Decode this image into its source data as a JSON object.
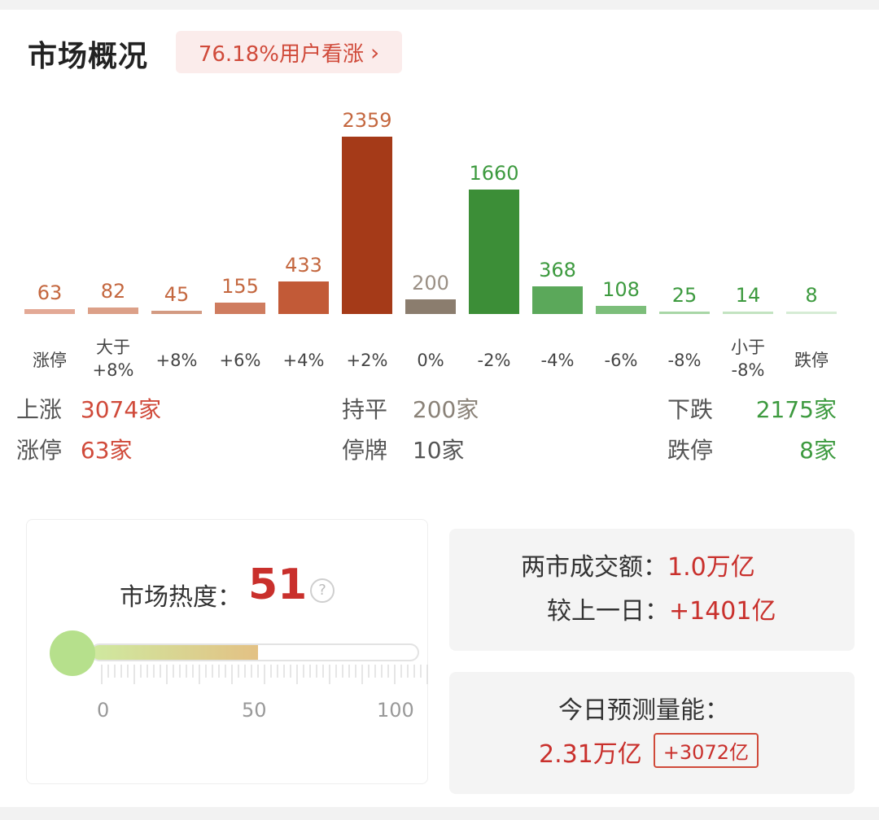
{
  "header": {
    "title": "市场概况",
    "sentiment": "76.18%用户看涨"
  },
  "chart_data": {
    "type": "bar",
    "categories": [
      "涨停",
      "大于\n+8%",
      "+8%",
      "+6%",
      "+4%",
      "+2%",
      "0%",
      "-2%",
      "-4%",
      "-6%",
      "-8%",
      "小于\n-8%",
      "跌停"
    ],
    "values": [
      63,
      82,
      45,
      155,
      433,
      2359,
      200,
      1660,
      368,
      108,
      25,
      14,
      8
    ],
    "colors": [
      "#e3a996",
      "#dca088",
      "#d39a82",
      "#cf7c5f",
      "#c25a37",
      "#a53a18",
      "#8b7d6e",
      "#3c8e37",
      "#5ba85a",
      "#7cbe7a",
      "#a8d6a6",
      "#c3e3c1",
      "#d6ecd5"
    ],
    "label_colors": [
      "#c4673f",
      "#c4673f",
      "#c4673f",
      "#c4673f",
      "#c4673f",
      "#c4673f",
      "#9a8f84",
      "#3d9a3f",
      "#3d9a3f",
      "#3d9a3f",
      "#3d9a3f",
      "#3d9a3f",
      "#3d9a3f"
    ],
    "ylim": [
      0,
      2400
    ]
  },
  "summary": {
    "rise_label": "上涨",
    "rise_value": "3074家",
    "flat_label": "持平",
    "flat_value": "200家",
    "fall_label": "下跌",
    "fall_value": "2175家",
    "limit_up_label": "涨停",
    "limit_up_value": "63家",
    "suspend_label": "停牌",
    "suspend_value": "10家",
    "limit_down_label": "跌停",
    "limit_down_value": "8家"
  },
  "heat": {
    "label": "市场热度：",
    "value": "51",
    "level": 51,
    "scale": [
      "0",
      "50",
      "100"
    ],
    "help_icon": "question-circle-icon"
  },
  "volume": {
    "turnover_label": "两市成交额：",
    "turnover_value": "1.0万亿",
    "change_label": "较上一日：",
    "change_value": "+1401亿"
  },
  "forecast": {
    "label": "今日预测量能：",
    "value": "2.31万亿",
    "badge": "+3072亿"
  }
}
